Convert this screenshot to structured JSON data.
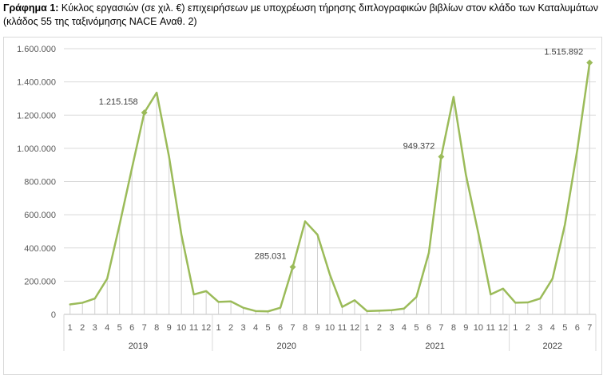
{
  "caption": {
    "lead": "Γράφημα 1:",
    "text": "Κύκλος εργασιών (σε χιλ. €) επιχειρήσεων με υποχρέωση τήρησης διπλογραφικών βιβλίων στον κλάδο των Καταλυμάτων (κλάδος 55 της ταξινόμησης NACE Αναθ. 2)"
  },
  "chart_data": {
    "type": "line",
    "title": "Κύκλος εργασιών (σε χιλ. €) επιχειρήσεων με υποχρέωση τήρησης διπλογραφικών βιβλίων στον κλάδο των Καταλυμάτων (κλάδος 55 της ταξινόμησης NACE Αναθ. 2)",
    "xlabel": "",
    "ylabel": "",
    "ylim": [
      0,
      1600000
    ],
    "yticks": [
      0,
      200000,
      400000,
      600000,
      800000,
      1000000,
      1200000,
      1400000,
      1600000
    ],
    "ytick_labels": [
      "0",
      "200.000",
      "400.000",
      "600.000",
      "800.000",
      "1.000.000",
      "1.200.000",
      "1.400.000",
      "1.600.000"
    ],
    "grid": "horizontal",
    "series_color": "#9bbb59",
    "groups": [
      {
        "label": "2019",
        "months": [
          "1",
          "2",
          "3",
          "4",
          "5",
          "6",
          "7",
          "8",
          "9",
          "10",
          "11",
          "12"
        ]
      },
      {
        "label": "2020",
        "months": [
          "1",
          "2",
          "3",
          "4",
          "5",
          "6",
          "7",
          "8",
          "9",
          "10",
          "11",
          "12"
        ]
      },
      {
        "label": "2021",
        "months": [
          "1",
          "2",
          "3",
          "4",
          "5",
          "6",
          "7",
          "8",
          "9",
          "10",
          "11",
          "12"
        ]
      },
      {
        "label": "2022",
        "months": [
          "1",
          "2",
          "3",
          "4",
          "5",
          "6",
          "7"
        ]
      }
    ],
    "series": [
      {
        "values": [
          60000,
          70000,
          95000,
          215000,
          540000,
          880000,
          1215158,
          1335000,
          950000,
          480000,
          120000,
          140000,
          75000,
          78000,
          40000,
          20000,
          18000,
          40000,
          285031,
          560000,
          480000,
          240000,
          45000,
          85000,
          20000,
          22000,
          25000,
          35000,
          105000,
          370000,
          949372,
          1310000,
          840000,
          490000,
          120000,
          155000,
          70000,
          72000,
          95000,
          215000,
          540000,
          990000,
          1515892
        ]
      }
    ],
    "annotations": [
      {
        "index": 6,
        "text": "1.215.158"
      },
      {
        "index": 18,
        "text": "285.031"
      },
      {
        "index": 30,
        "text": "949.372"
      },
      {
        "index": 42,
        "text": "1.515.892"
      }
    ]
  }
}
